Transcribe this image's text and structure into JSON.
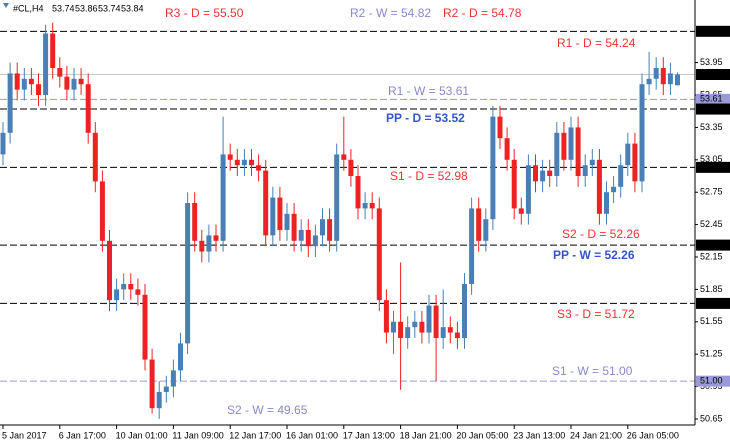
{
  "chart_data": {
    "type": "candlestick",
    "symbol": "#CL,H4",
    "categories": [
      "5 Jan 2017",
      null,
      null,
      null,
      null,
      null,
      null,
      null,
      "6 Jan 17:00",
      null,
      null,
      null,
      null,
      null,
      null,
      null,
      "10 Jan 01:00",
      null,
      null,
      null,
      null,
      null,
      null,
      null,
      "11 Jan 09:00",
      null,
      null,
      null,
      null,
      null,
      null,
      null,
      "12 Jan 17:00",
      null,
      null,
      null,
      null,
      null,
      null,
      null,
      "16 Jan 01:00",
      null,
      null,
      null,
      null,
      null,
      null,
      null,
      "17 Jan 13:00",
      null,
      null,
      null,
      null,
      null,
      null,
      null,
      "18 Jan 21:00",
      null,
      null,
      null,
      null,
      null,
      null,
      null,
      "20 Jan 05:00",
      null,
      null,
      null,
      null,
      null,
      null,
      null,
      "23 Jan 13:00",
      null,
      null,
      null,
      null,
      null,
      null,
      null,
      "24 Jan 21:00",
      null,
      null,
      null,
      null,
      null,
      null,
      null,
      "26 Jan 05:00",
      null,
      null,
      null,
      null,
      null,
      null,
      null
    ],
    "open": [
      53.1,
      53.3,
      53.85,
      53.7,
      53.8,
      53.75,
      53.65,
      54.22,
      53.9,
      53.82,
      53.7,
      53.8,
      53.75,
      53.3,
      52.85,
      52.3,
      51.75,
      51.85,
      51.9,
      51.85,
      51.8,
      51.2,
      50.75,
      50.9,
      50.95,
      51.1,
      51.35,
      52.65,
      52.3,
      52.2,
      52.35,
      52.3,
      53.1,
      53.05,
      53.0,
      53.05,
      53.0,
      52.95,
      52.35,
      52.7,
      52.4,
      52.55,
      52.3,
      52.4,
      52.25,
      52.35,
      52.5,
      52.3,
      53.1,
      53.05,
      52.9,
      52.6,
      52.65,
      52.6,
      51.75,
      51.45,
      51.55,
      51.4,
      51.5,
      51.55,
      51.45,
      51.7,
      51.4,
      51.5,
      51.45,
      51.4,
      51.9,
      52.6,
      52.3,
      52.5,
      53.45,
      53.25,
      53.05,
      52.6,
      52.55,
      53.0,
      52.85,
      52.95,
      52.9,
      53.3,
      53.05,
      53.35,
      52.9,
      53.0,
      53.05,
      52.55,
      52.75,
      52.8,
      53.0,
      53.2,
      52.85,
      53.75,
      53.8,
      53.9,
      53.75,
      53.74
    ],
    "high": [
      53.4,
      53.95,
      53.95,
      53.9,
      53.9,
      53.85,
      54.3,
      54.32,
      54.0,
      53.92,
      53.9,
      53.9,
      53.85,
      53.4,
      52.95,
      52.4,
      51.95,
      52.0,
      52.0,
      51.95,
      51.9,
      51.3,
      51.0,
      51.05,
      51.2,
      51.45,
      52.75,
      52.75,
      52.4,
      52.45,
      52.45,
      53.45,
      53.2,
      53.15,
      53.15,
      53.15,
      53.1,
      53.05,
      52.8,
      52.8,
      52.65,
      52.65,
      52.5,
      52.5,
      52.45,
      52.6,
      52.6,
      53.2,
      53.45,
      53.15,
      53.0,
      52.75,
      52.75,
      52.7,
      51.85,
      51.65,
      52.1,
      51.6,
      51.65,
      51.65,
      51.8,
      51.8,
      51.85,
      51.6,
      51.55,
      52.0,
      52.7,
      52.7,
      52.6,
      53.55,
      53.55,
      53.35,
      53.15,
      52.7,
      53.1,
      53.1,
      53.05,
      53.05,
      53.4,
      53.4,
      53.45,
      53.45,
      53.1,
      53.15,
      53.15,
      52.85,
      52.9,
      53.1,
      53.3,
      53.3,
      53.85,
      54.05,
      54.0,
      54.0,
      53.95,
      53.86
    ],
    "low": [
      53.0,
      53.2,
      53.6,
      53.6,
      53.65,
      53.55,
      53.55,
      53.8,
      53.72,
      53.6,
      53.6,
      53.65,
      53.2,
      52.75,
      52.2,
      51.65,
      51.65,
      51.75,
      51.75,
      51.7,
      51.1,
      50.7,
      50.65,
      50.8,
      50.85,
      51.0,
      51.25,
      52.2,
      52.1,
      52.1,
      52.2,
      52.2,
      52.95,
      52.9,
      52.9,
      52.9,
      52.85,
      52.25,
      52.25,
      52.3,
      52.3,
      52.2,
      52.2,
      52.15,
      52.15,
      52.25,
      52.2,
      52.2,
      52.95,
      52.8,
      52.5,
      52.5,
      52.5,
      51.65,
      51.35,
      51.25,
      50.92,
      51.3,
      51.4,
      51.35,
      51.35,
      51.0,
      51.3,
      51.35,
      51.3,
      51.3,
      51.8,
      52.2,
      52.2,
      52.4,
      53.15,
      52.95,
      52.5,
      52.45,
      52.45,
      52.75,
      52.75,
      52.8,
      52.8,
      52.95,
      52.95,
      52.8,
      52.8,
      52.9,
      52.45,
      52.45,
      52.65,
      52.7,
      52.9,
      52.75,
      52.75,
      53.65,
      53.7,
      53.65,
      53.65,
      53.74
    ],
    "close": [
      53.3,
      53.85,
      53.7,
      53.8,
      53.75,
      53.65,
      54.22,
      53.9,
      53.82,
      53.7,
      53.8,
      53.75,
      53.3,
      52.85,
      52.3,
      51.75,
      51.85,
      51.9,
      51.85,
      51.8,
      51.2,
      50.75,
      50.9,
      50.95,
      51.1,
      51.35,
      52.65,
      52.3,
      52.2,
      52.35,
      52.3,
      53.1,
      53.05,
      53.0,
      53.05,
      53.0,
      52.95,
      52.35,
      52.7,
      52.4,
      52.55,
      52.3,
      52.4,
      52.25,
      52.35,
      52.5,
      52.3,
      53.1,
      53.05,
      52.9,
      52.6,
      52.65,
      52.6,
      51.75,
      51.45,
      51.55,
      51.4,
      51.5,
      51.55,
      51.45,
      51.7,
      51.4,
      51.5,
      51.45,
      51.4,
      51.9,
      52.6,
      52.3,
      52.5,
      53.45,
      53.25,
      53.05,
      52.6,
      52.55,
      53.0,
      52.85,
      52.95,
      52.9,
      53.3,
      53.05,
      53.35,
      52.9,
      53.0,
      53.05,
      52.55,
      52.75,
      52.8,
      53.0,
      53.2,
      52.85,
      53.75,
      53.8,
      53.9,
      53.75,
      53.85,
      53.84
    ],
    "up_color": "#4a7fb5",
    "down_color": "#ee2222",
    "ylim": [
      50.594,
      54.53
    ],
    "yticks": [
      50.65,
      50.95,
      51.25,
      51.55,
      51.85,
      52.15,
      52.45,
      52.75,
      53.05,
      53.35,
      53.65,
      53.95
    ],
    "levels": [
      {
        "value": 54.24,
        "color": "#000000",
        "dashed": true
      },
      {
        "value": 53.84,
        "color": "#000000",
        "line_color": "#c8c8c8",
        "dashed": false
      },
      {
        "value": 53.61,
        "color": "#9a9ad8",
        "dashed": true
      },
      {
        "value": 53.52,
        "color": "#000000",
        "dashed": true
      },
      {
        "value": 52.98,
        "color": "#000000",
        "dashed": true
      },
      {
        "value": 52.26,
        "color": "#000000",
        "dashed": true
      },
      {
        "value": 51.72,
        "color": "#000000",
        "dashed": true
      },
      {
        "value": 51,
        "label": "51.00",
        "color": "#9a9ad8",
        "dashed": true
      }
    ],
    "annotations": [
      {
        "text": "R3 - D = 55.50",
        "color": "#ee3333"
      },
      {
        "text": "R2 - W = 54.82",
        "color": "#8888cc"
      },
      {
        "text": "R2 - D = 54.78",
        "color": "#ee3333"
      },
      {
        "text": "R1 - D = 54.24",
        "color": "#ee3333"
      },
      {
        "text": "R1 - W = 53.61",
        "color": "#8888cc"
      },
      {
        "text": "PP - D = 53.52",
        "color": "#3355cc",
        "bold": true
      },
      {
        "text": "S1 - D = 52.98",
        "color": "#ee3333"
      },
      {
        "text": "S2 - D = 52.26",
        "color": "#ee3333"
      },
      {
        "text": "PP - W = 52.26",
        "color": "#3355cc",
        "bold": true
      },
      {
        "text": "S3 - D = 51.72",
        "color": "#ee3333"
      },
      {
        "text": "S1 - W = 51.00",
        "color": "#8888cc"
      },
      {
        "text": "S2 - W = 49.65",
        "color": "#8888cc"
      }
    ]
  }
}
